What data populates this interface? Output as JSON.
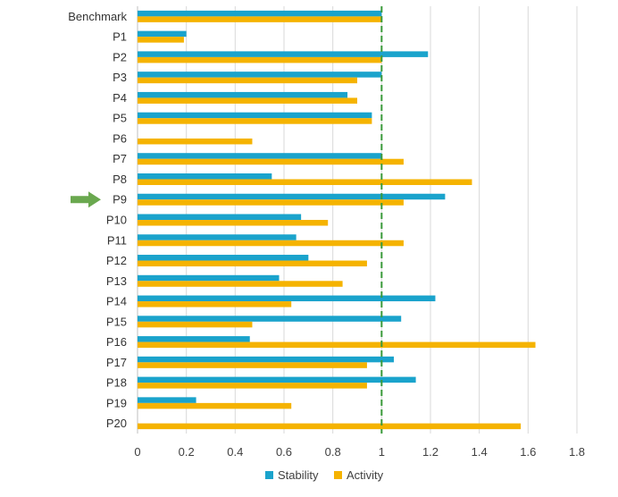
{
  "chart_data": {
    "type": "bar",
    "orientation": "horizontal",
    "categories": [
      "Benchmark",
      "P1",
      "P2",
      "P3",
      "P4",
      "P5",
      "P6",
      "P7",
      "P8",
      "P9",
      "P10",
      "P11",
      "P12",
      "P13",
      "P14",
      "P15",
      "P16",
      "P17",
      "P18",
      "P19",
      "P20"
    ],
    "series": [
      {
        "name": "Stability",
        "color": "#1aa3cc",
        "values": [
          1.0,
          0.2,
          1.19,
          1.0,
          0.86,
          0.96,
          0.0,
          1.0,
          0.55,
          1.26,
          0.67,
          0.65,
          0.7,
          0.58,
          1.22,
          1.08,
          0.46,
          1.05,
          1.14,
          0.24,
          0.0
        ]
      },
      {
        "name": "Activity",
        "color": "#f5b300",
        "values": [
          1.0,
          0.19,
          1.0,
          0.9,
          0.9,
          0.96,
          0.47,
          1.09,
          1.37,
          1.09,
          0.78,
          1.09,
          0.94,
          0.84,
          0.63,
          0.47,
          1.63,
          0.94,
          0.94,
          0.63,
          1.57
        ]
      }
    ],
    "xlim": [
      0,
      1.8
    ],
    "xticks": [
      "0",
      "0.2",
      "0.4",
      "0.6",
      "0.8",
      "1",
      "1.2",
      "1.4",
      "1.6",
      "1.8"
    ],
    "reference_line": {
      "value": 1,
      "color": "#3a9a3a",
      "style": "dashed"
    },
    "highlight_arrow": {
      "category": "P9",
      "color": "#6aa84f"
    },
    "grid": true,
    "legend": {
      "position": "bottom",
      "entries": [
        "Stability",
        "Activity"
      ]
    },
    "title": "",
    "xlabel": "",
    "ylabel": ""
  }
}
